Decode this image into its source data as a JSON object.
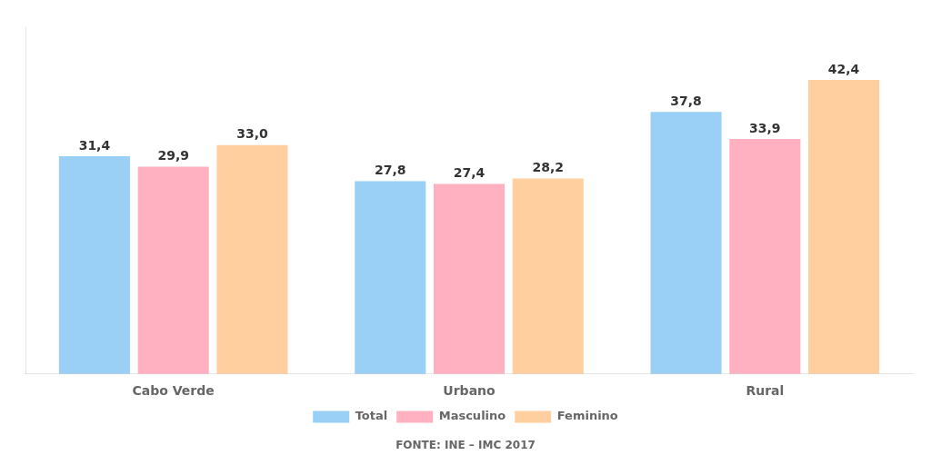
{
  "chart_data": {
    "type": "bar",
    "categories": [
      "Cabo Verde",
      "Urbano",
      "Rural"
    ],
    "series": [
      {
        "name": "Total",
        "values": [
          31.4,
          27.8,
          37.8
        ],
        "value_labels": [
          "31,4",
          "27,8",
          "37,8"
        ]
      },
      {
        "name": "Masculino",
        "values": [
          29.9,
          27.4,
          33.9
        ],
        "value_labels": [
          "29,9",
          "27,4",
          "33,9"
        ]
      },
      {
        "name": "Feminino",
        "values": [
          33.0,
          28.2,
          42.4
        ],
        "value_labels": [
          "33,0",
          "28,2",
          "42,4"
        ]
      }
    ],
    "ylim": [
      0,
      50
    ],
    "yticks": [],
    "tick_labels": "x",
    "grid": false,
    "legend": "bottom",
    "data_labels": true,
    "annotations": [
      "FONTE: INE – IMC 2017"
    ]
  }
}
